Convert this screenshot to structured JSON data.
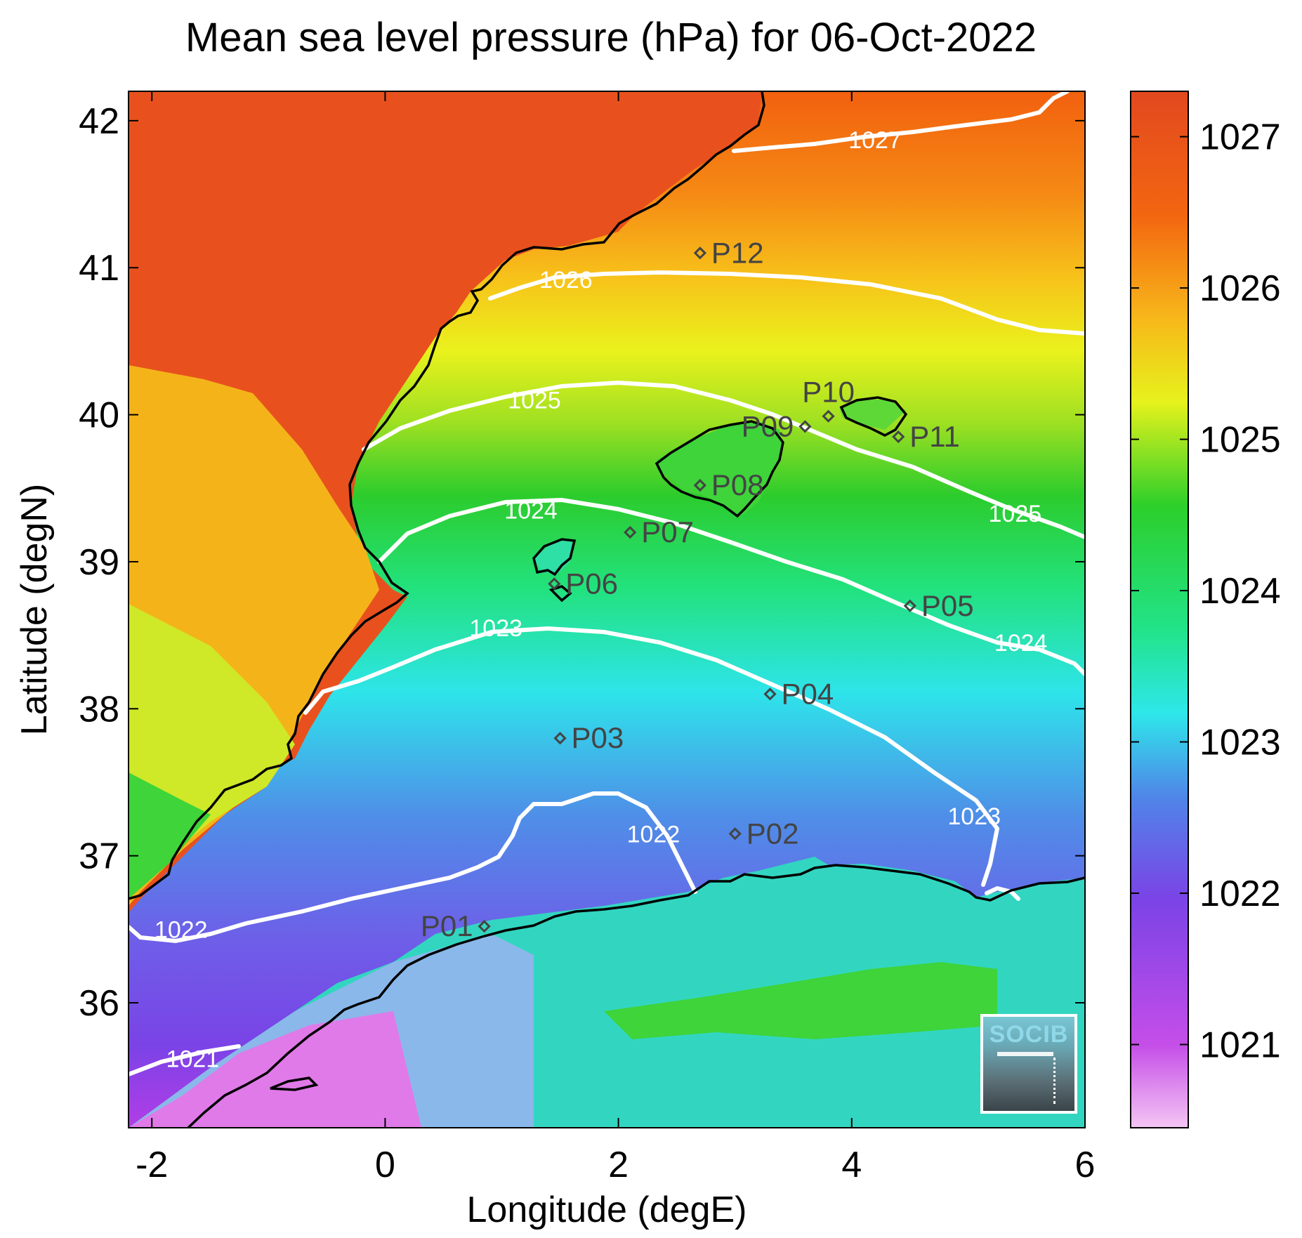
{
  "title": "Mean sea level pressure (hPa) for 06-Oct-2022",
  "map": {
    "xlabel": "Longitude (degE)",
    "ylabel": "Latitude (degN)",
    "xlim": [
      -2.2,
      6.0
    ],
    "ylim": [
      35.15,
      42.2
    ],
    "xticks": [
      "-2",
      "0",
      "2",
      "4",
      "6"
    ],
    "yticks": [
      "36",
      "37",
      "38",
      "39",
      "40",
      "41",
      "42"
    ]
  },
  "colorbar": {
    "range": [
      1020.45,
      1027.3
    ],
    "ticks": [
      "1021",
      "1022",
      "1023",
      "1024",
      "1025",
      "1026",
      "1027"
    ],
    "colors": [
      "#f4c6f4",
      "#c54ee8",
      "#7b43e6",
      "#4f86e8",
      "#2ee7ea",
      "#22e38a",
      "#2ccf2a",
      "#e6f21c",
      "#f7b81a",
      "#f36610",
      "#e2491f"
    ]
  },
  "contour_labels": [
    {
      "text": "1027",
      "lon": 4.2,
      "lat": 41.87
    },
    {
      "text": "1026",
      "lon": 1.55,
      "lat": 40.92
    },
    {
      "text": "1025",
      "lon": 1.28,
      "lat": 40.1
    },
    {
      "text": "1025",
      "lon": 5.4,
      "lat": 39.33
    },
    {
      "text": "1024",
      "lon": 1.25,
      "lat": 39.35
    },
    {
      "text": "1024",
      "lon": 5.45,
      "lat": 38.45
    },
    {
      "text": "1023",
      "lon": 0.95,
      "lat": 38.55
    },
    {
      "text": "1023",
      "lon": 5.05,
      "lat": 37.27
    },
    {
      "text": "1022",
      "lon": 2.3,
      "lat": 37.15
    },
    {
      "text": "1022",
      "lon": -1.75,
      "lat": 36.5
    },
    {
      "text": "1021",
      "lon": -1.65,
      "lat": 35.62
    }
  ],
  "stations": [
    {
      "name": "P01",
      "lon": 0.85,
      "lat": 36.52,
      "label_side": "left"
    },
    {
      "name": "P02",
      "lon": 3.0,
      "lat": 37.15,
      "label_side": "right"
    },
    {
      "name": "P03",
      "lon": 1.5,
      "lat": 37.8,
      "label_side": "right"
    },
    {
      "name": "P04",
      "lon": 3.3,
      "lat": 38.1,
      "label_side": "right"
    },
    {
      "name": "P05",
      "lon": 4.5,
      "lat": 38.7,
      "label_side": "right"
    },
    {
      "name": "P06",
      "lon": 1.45,
      "lat": 38.85,
      "label_side": "right"
    },
    {
      "name": "P07",
      "lon": 2.1,
      "lat": 39.2,
      "label_side": "right"
    },
    {
      "name": "P08",
      "lon": 2.7,
      "lat": 39.52,
      "label_side": "right"
    },
    {
      "name": "P09",
      "lon": 3.6,
      "lat": 39.92,
      "label_side": "left"
    },
    {
      "name": "P10",
      "lon": 3.8,
      "lat": 39.99,
      "label_side": "above"
    },
    {
      "name": "P11",
      "lon": 4.4,
      "lat": 39.85,
      "label_side": "right"
    },
    {
      "name": "P12",
      "lon": 2.7,
      "lat": 41.1,
      "label_side": "right"
    }
  ],
  "logo": {
    "text": "SOCIB"
  }
}
